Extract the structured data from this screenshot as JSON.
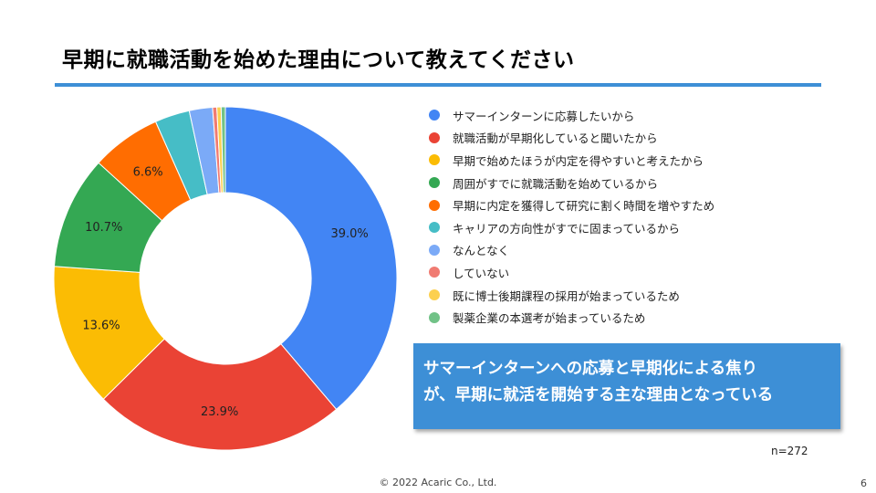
{
  "slide": {
    "title": "早期に就職活動を始めた理由について教えてください",
    "sample_size": "n=272",
    "footer": "© 2022 Acaric Co., Ltd.",
    "page_number": "6"
  },
  "callout": {
    "line1": "サマーインターンへの応募と早期化による焦り",
    "line2": "が、早期に就活を開始する主な理由となっている",
    "color": "#3d8fd6"
  },
  "chart_data": {
    "type": "pie",
    "donut": true,
    "title": "",
    "legend_position": "right",
    "categories": [
      "サマーインターンに応募したいから",
      "就職活動が早期化していると聞いたから",
      "早期で始めたほうが内定を得やすいと考えたから",
      "周囲がすでに就職活動を始めているから",
      "早期に内定を獲得して研究に割く時間を増やすため",
      "キャリアの方向性がすでに固まっているから",
      "なんとなく",
      "していない",
      "既に博士後期課程の採用が始まっているため",
      "製薬企業の本選考が始まっているため"
    ],
    "values": [
      39.0,
      23.9,
      13.6,
      10.7,
      6.6,
      3.3,
      2.2,
      0.4,
      0.4,
      0.4
    ],
    "data_labels": [
      "39.0%",
      "23.9%",
      "13.6%",
      "10.7%",
      "6.6%",
      "",
      "",
      "",
      "",
      ""
    ],
    "colors": [
      "#4285f4",
      "#ea4335",
      "#fbbc04",
      "#34a853",
      "#ff6d01",
      "#46bdc6",
      "#7baaf7",
      "#f07b72",
      "#fcd04f",
      "#71c287"
    ]
  }
}
